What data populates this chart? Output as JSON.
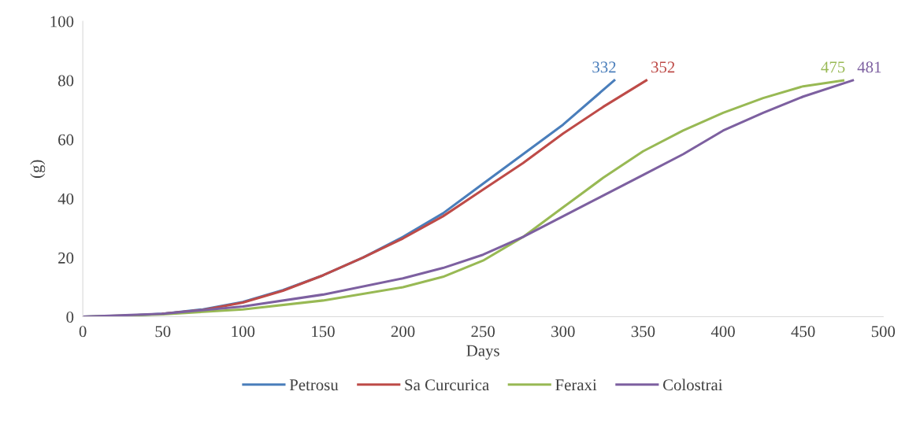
{
  "chart_data": {
    "type": "line",
    "xlabel": "Days",
    "ylabel": "(g)",
    "xlim": [
      0,
      500
    ],
    "xticks": [
      0,
      50,
      100,
      150,
      200,
      250,
      300,
      350,
      400,
      450,
      500
    ],
    "ylim": [
      0,
      100
    ],
    "yticks": [
      0,
      20,
      40,
      60,
      80,
      100
    ],
    "grid": false,
    "legend": "bottom",
    "marker": "none",
    "line_style": "solid",
    "series": [
      {
        "name": "Petrosu",
        "color": "#4a7ebb",
        "x": [
          0,
          25,
          50,
          75,
          100,
          125,
          150,
          175,
          200,
          225,
          250,
          275,
          300,
          332
        ],
        "values": [
          0,
          0.3,
          1,
          2.5,
          5,
          9,
          14,
          20,
          27,
          35,
          45,
          55,
          65,
          80
        ]
      },
      {
        "name": "Sa Curcurica",
        "color": "#be4b48",
        "x": [
          50,
          75,
          100,
          125,
          150,
          175,
          200,
          225,
          250,
          275,
          300,
          325,
          352
        ],
        "values": [
          1,
          2.3,
          4.8,
          8.8,
          14,
          20,
          26.5,
          34,
          43,
          52,
          62,
          71,
          80
        ]
      },
      {
        "name": "Feraxi",
        "color": "#98b954",
        "x": [
          0,
          50,
          100,
          150,
          200,
          225,
          250,
          275,
          300,
          325,
          350,
          375,
          400,
          425,
          450,
          475
        ],
        "values": [
          0,
          0.8,
          2.5,
          5.5,
          10,
          13.5,
          19,
          27,
          37,
          47,
          56,
          63,
          69,
          74,
          78,
          80
        ]
      },
      {
        "name": "Colostrai",
        "color": "#7d60a0",
        "x": [
          0,
          50,
          100,
          150,
          200,
          225,
          250,
          275,
          300,
          325,
          350,
          375,
          400,
          425,
          450,
          481
        ],
        "values": [
          0,
          1,
          3.5,
          7.5,
          13,
          16.5,
          21,
          27,
          34,
          41,
          48,
          55,
          63,
          69,
          74.5,
          80
        ]
      }
    ],
    "annotations": [
      {
        "text": "332",
        "x": 332,
        "y": 80
      },
      {
        "text": "352",
        "x": 352,
        "y": 80
      },
      {
        "text": "475",
        "x": 475,
        "y": 80
      },
      {
        "text": "481",
        "x": 481,
        "y": 80
      }
    ]
  }
}
